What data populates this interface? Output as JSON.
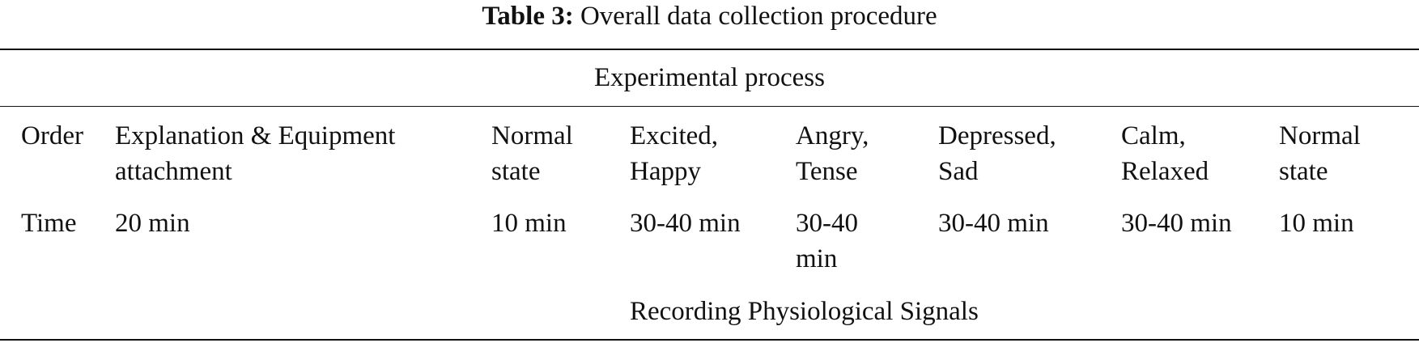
{
  "caption": {
    "label": "Table 3:",
    "text": "Overall data collection procedure"
  },
  "table": {
    "group_header": "Experimental process",
    "order_row": {
      "header": "Order",
      "cells": [
        [
          "Explanation & Equipment",
          "attachment"
        ],
        [
          "Normal",
          "state"
        ],
        [
          "Excited,",
          "Happy"
        ],
        [
          "Angry,",
          "Tense"
        ],
        [
          "Depressed,",
          "Sad"
        ],
        [
          "Calm,",
          "Relaxed"
        ],
        [
          "Normal",
          "state"
        ]
      ]
    },
    "time_row": {
      "header": "Time",
      "cells": [
        [
          "20 min"
        ],
        [
          "10 min"
        ],
        [
          "30-40 min"
        ],
        [
          "30-40",
          "min"
        ],
        [
          "30-40 min"
        ],
        [
          "30-40 min"
        ],
        [
          "10 min"
        ]
      ]
    },
    "footer_span": "Recording Physiological Signals"
  }
}
